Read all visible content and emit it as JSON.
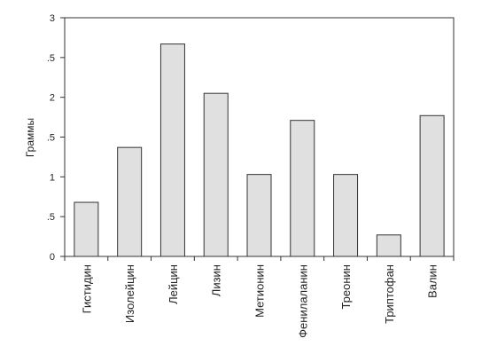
{
  "chart_data": {
    "type": "bar",
    "y_label": "Граммы",
    "categories": [
      "Гистидин",
      "Изолейцин",
      "Лейцин",
      "Лизин",
      "Метионин",
      "Фенилаланин",
      "Треонин",
      "Триптофан",
      "Валин"
    ],
    "values": [
      0.68,
      1.37,
      2.67,
      2.05,
      1.03,
      1.71,
      1.03,
      0.27,
      1.77
    ],
    "color": "#e0e0e0",
    "ylim": [
      0,
      3
    ],
    "yticks": [
      0,
      {
        "value": 0.5,
        "label": ".5"
      },
      1,
      {
        "value": 1.5,
        "label": ".5"
      },
      2,
      {
        "value": 2.5,
        "label": ".5"
      },
      3
    ]
  }
}
